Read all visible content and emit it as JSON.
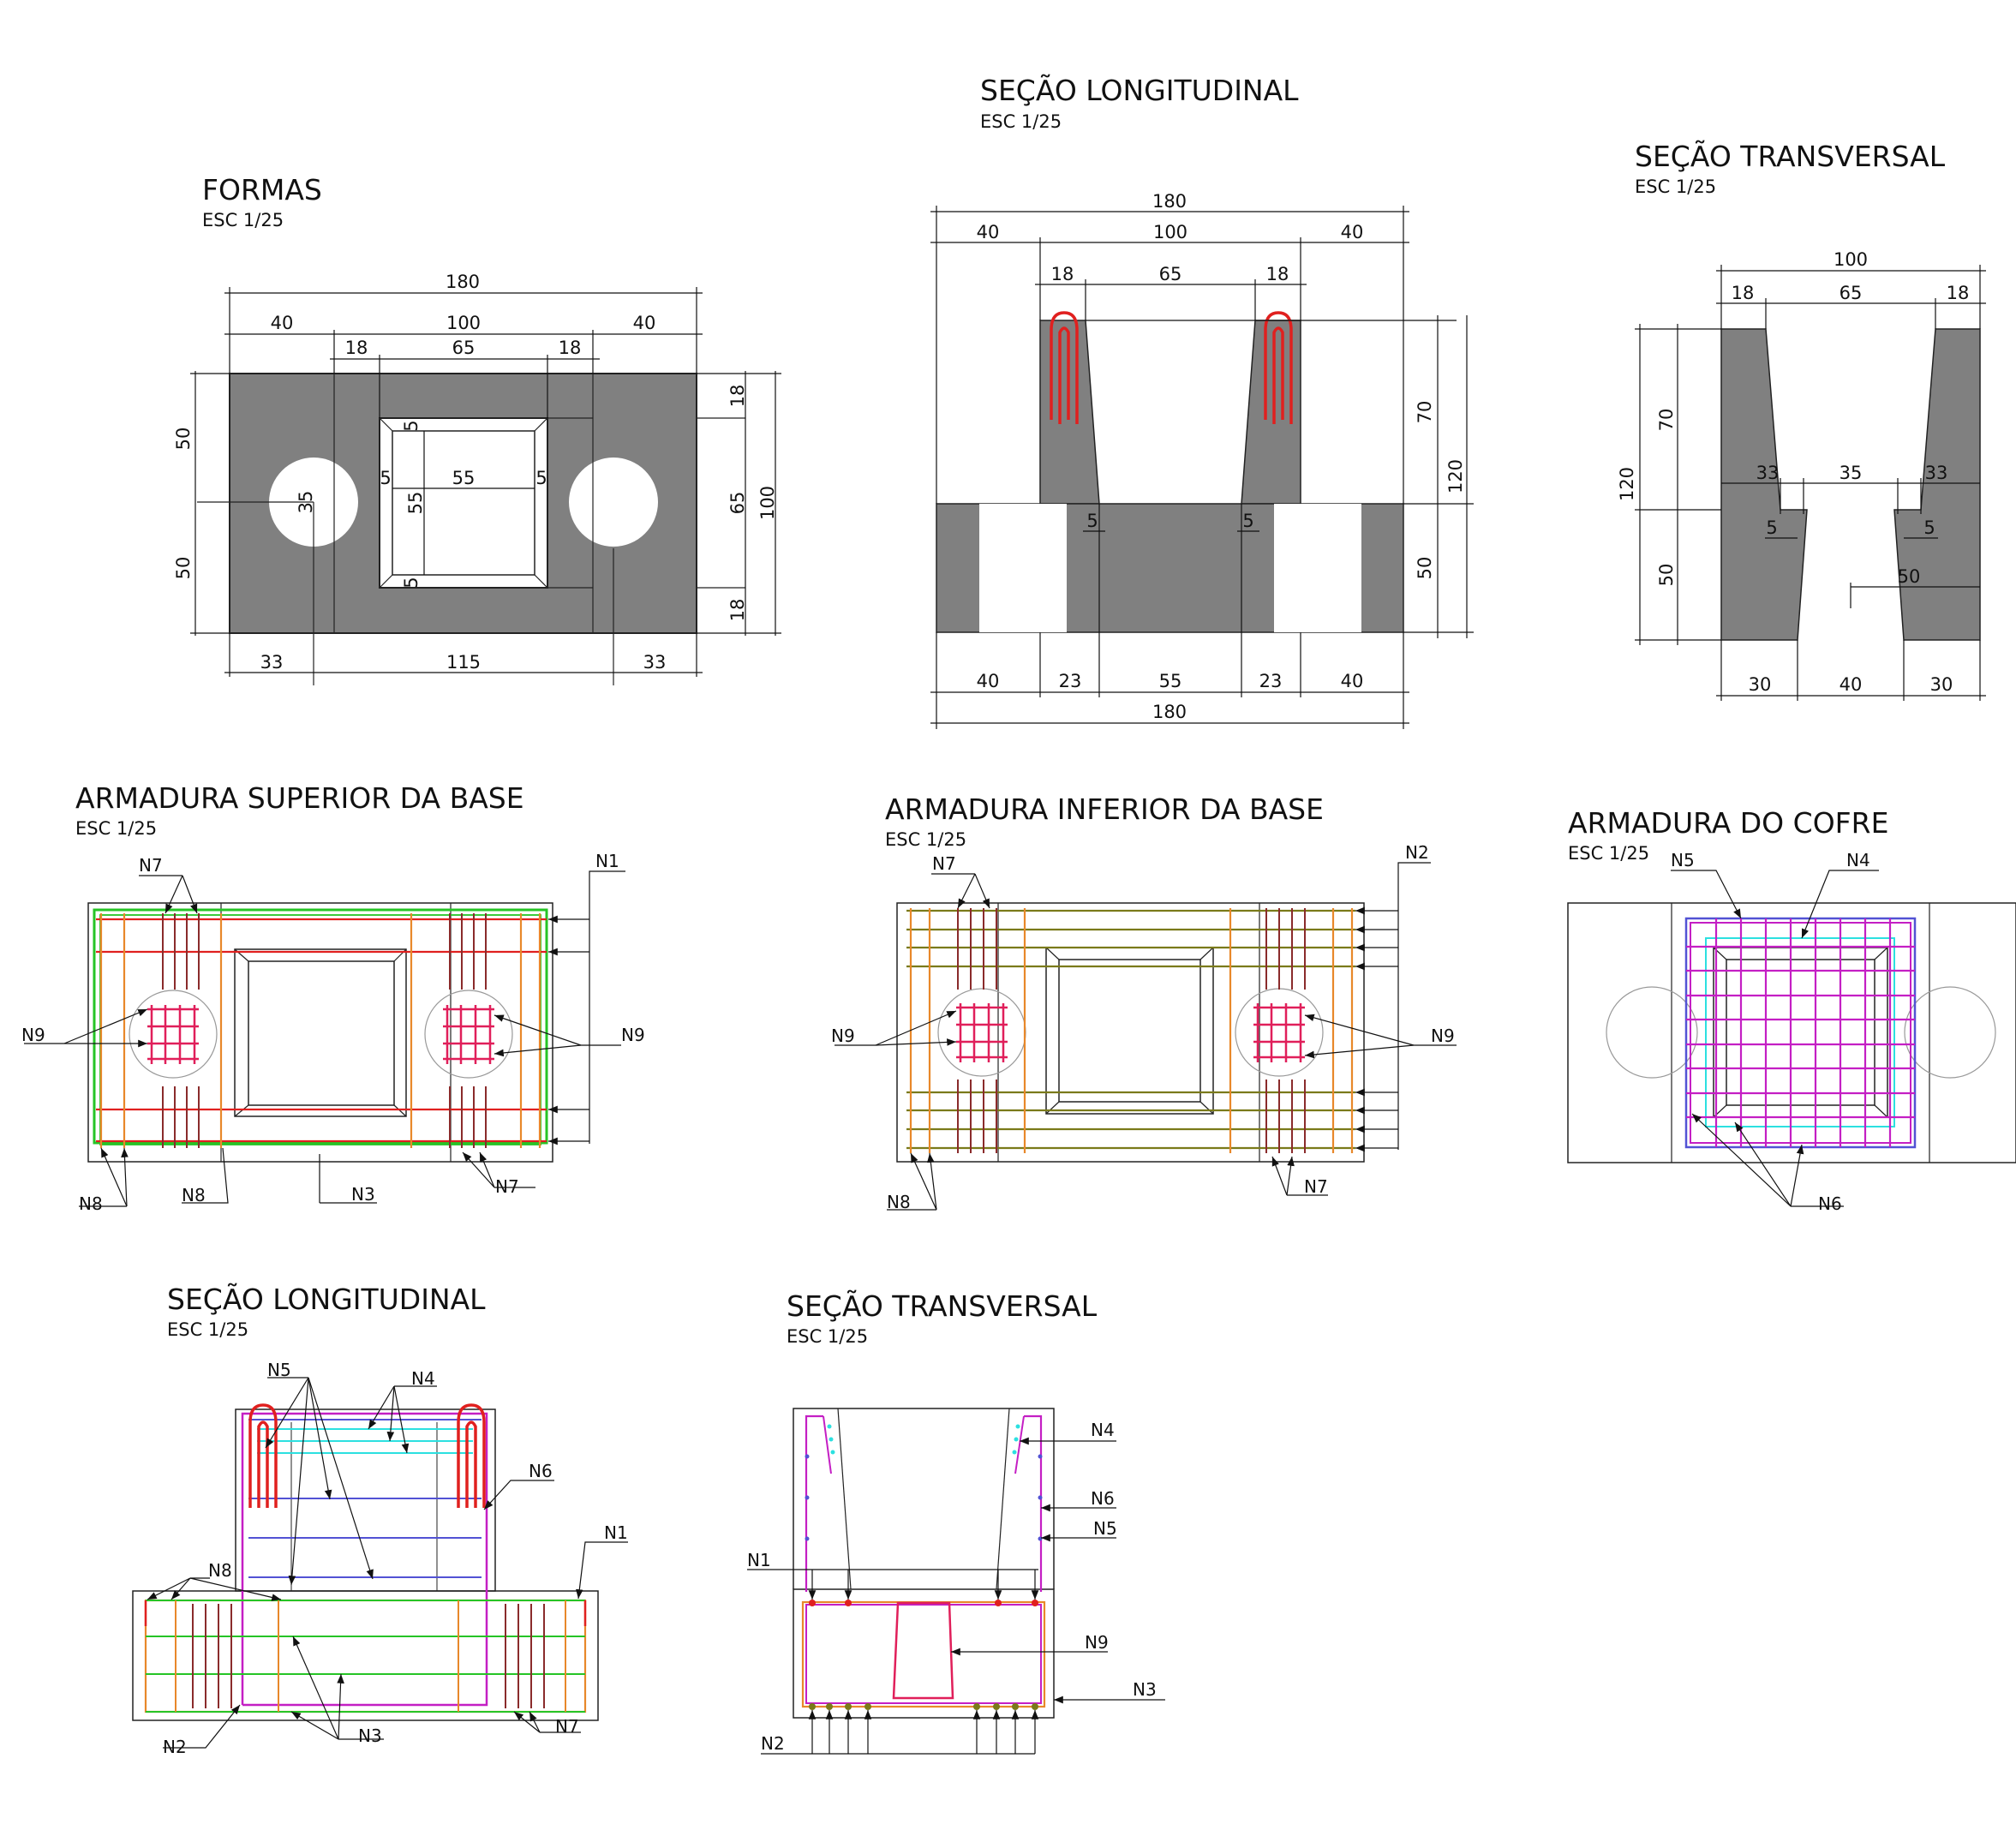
{
  "views": {
    "formas": {
      "title": "FORMAS",
      "scale": "ESC 1/25",
      "dims": {
        "total": "180",
        "side": "40",
        "mid": "100",
        "wall": "18",
        "open": "65",
        "half_h": "50",
        "circle_d": "35",
        "inner": "55",
        "chamfer": "5",
        "right_wall": "18",
        "right_open": "65",
        "right_total": "100",
        "bot_side": "33",
        "bot_mid": "115"
      }
    },
    "sec_long_top": {
      "title": "SEÇÃO LONGITUDINAL",
      "scale": "ESC 1/25",
      "dims": {
        "total": "180",
        "side": "40",
        "mid": "100",
        "wall": "18",
        "open": "65",
        "upper_h": "70",
        "lower_h": "50",
        "total_h": "120",
        "chamfer": "5",
        "b_side": "40",
        "b_gap": "23",
        "b_mid": "55"
      }
    },
    "sec_trans_top": {
      "title": "SEÇÃO TRANSVERSAL",
      "scale": "ESC 1/25",
      "dims": {
        "total": "100",
        "wall": "18",
        "open": "65",
        "upper_h": "70",
        "lower_h": "50",
        "total_h": "120",
        "slope": "33",
        "inner": "35",
        "chamfer": "5",
        "depth": "50",
        "b_side": "30",
        "b_mid": "40"
      }
    },
    "arm_sup": {
      "title": "ARMADURA SUPERIOR DA BASE",
      "scale": "ESC 1/25",
      "labels": {
        "n1": "N1",
        "n3": "N3",
        "n7": "N7",
        "n8": "N8",
        "n9": "N9"
      }
    },
    "arm_inf": {
      "title": "ARMADURA INFERIOR DA BASE",
      "scale": "ESC 1/25",
      "labels": {
        "n2": "N2",
        "n7": "N7",
        "n8": "N8",
        "n9": "N9"
      }
    },
    "arm_cofre": {
      "title": "ARMADURA DO COFRE",
      "scale": "ESC 1/25",
      "labels": {
        "n4": "N4",
        "n5": "N5",
        "n6": "N6"
      }
    },
    "sec_long_bot": {
      "title": "SEÇÃO LONGITUDINAL",
      "scale": "ESC 1/25",
      "labels": {
        "n1": "N1",
        "n2": "N2",
        "n3": "N3",
        "n4": "N4",
        "n5": "N5",
        "n6": "N6",
        "n7": "N7",
        "n8": "N8"
      }
    },
    "sec_trans_bot": {
      "title": "SEÇÃO TRANSVERSAL",
      "scale": "ESC 1/25",
      "labels": {
        "n1": "N1",
        "n2": "N2",
        "n3": "N3",
        "n4": "N4",
        "n5": "N5",
        "n6": "N6",
        "n9": "N9"
      }
    }
  },
  "colors": {
    "concrete": "#808080",
    "n1": "#e0201f",
    "n2": "#7a7a1a",
    "n3": "#26c426",
    "n4": "#5252d4",
    "n5": "#c41fc4",
    "n6": "#2ce0e0",
    "n7": "#8a2b2b",
    "n8": "#e8882a",
    "n9": "#e01f5a"
  }
}
